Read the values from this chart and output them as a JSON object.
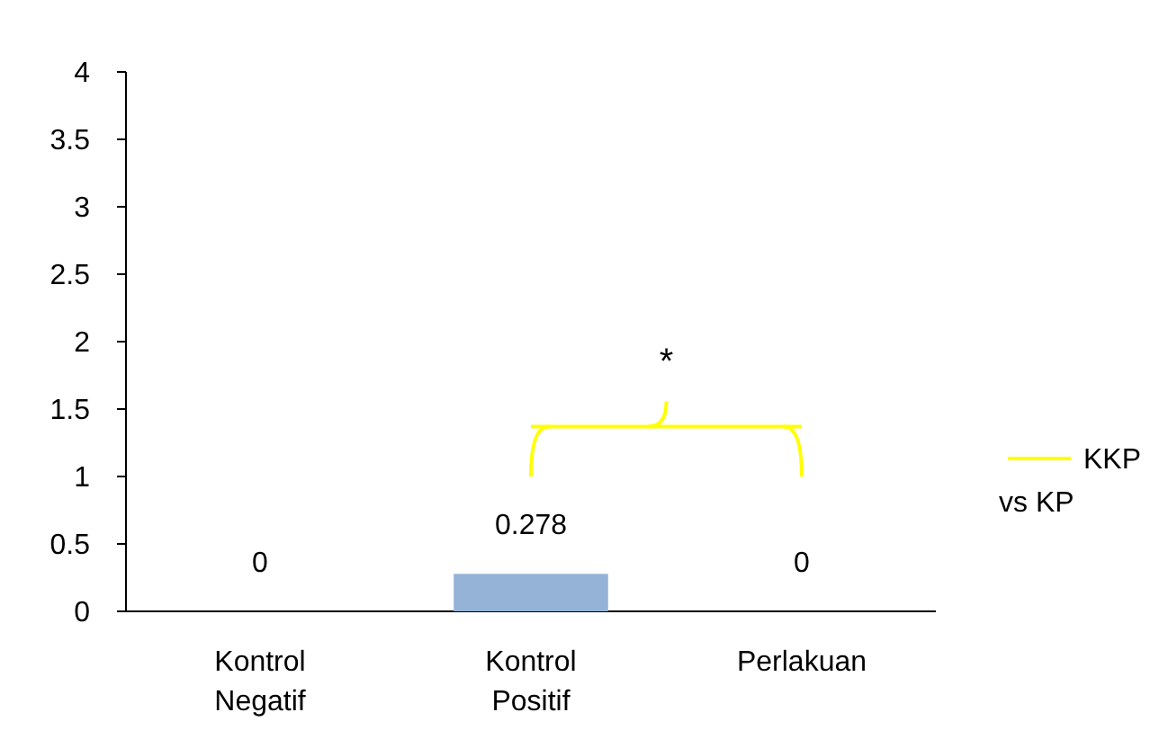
{
  "chart_data": {
    "type": "bar",
    "categories": [
      "Kontrol Negatif",
      "Kontrol Positif",
      "Perlakuan"
    ],
    "series": [
      {
        "color": "#95b3d7",
        "values": [
          0,
          0.278,
          0
        ],
        "value_labels": [
          "0",
          "0.278",
          "0"
        ]
      },
      {
        "type": "line",
        "name": "KKP vs KP",
        "color": "#ffff00",
        "values": [
          null,
          1.37,
          1.37
        ]
      }
    ],
    "ylim": [
      0,
      4
    ],
    "yticks": [
      0,
      0.5,
      1,
      1.5,
      2,
      2.5,
      3,
      3.5,
      4
    ],
    "grid": false,
    "legend": "right",
    "annotations": [
      "*"
    ]
  }
}
